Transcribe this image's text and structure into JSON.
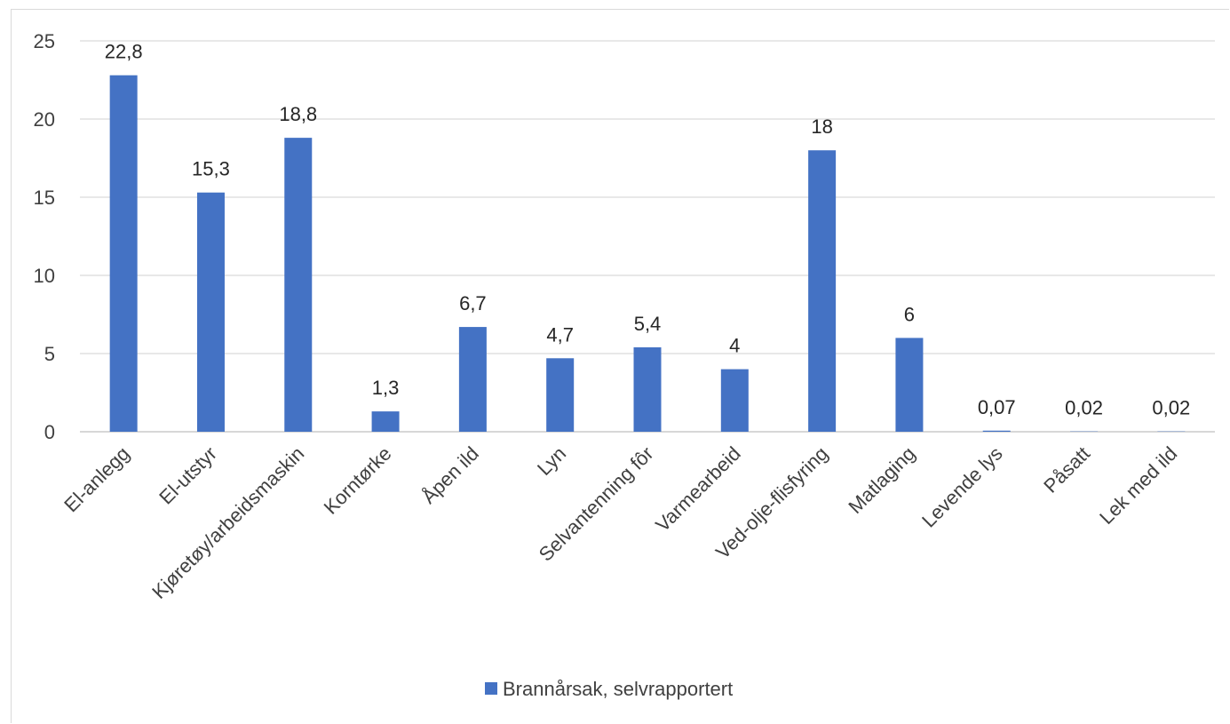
{
  "chart_data": {
    "type": "bar",
    "categories": [
      "El-anlegg",
      "El-utstyr",
      "Kjøretøy/arbeidsmaskin",
      "Korntørke",
      "Åpen ild",
      "Lyn",
      "Selvantenning fôr",
      "Varmearbeid",
      "Ved-olje-flisfyring",
      "Matlaging",
      "Levende lys",
      "Påsatt",
      "Lek med ild"
    ],
    "series": [
      {
        "name": "Brannårsak, selvrapportert",
        "values": [
          22.8,
          15.3,
          18.8,
          1.3,
          6.7,
          4.7,
          5.4,
          4,
          18,
          6,
          0.07,
          0.02,
          0.02
        ],
        "labels": [
          "22,8",
          "15,3",
          "18,8",
          "1,3",
          "6,7",
          "4,7",
          "5,4",
          "4",
          "18",
          "6",
          "0,07",
          "0,02",
          "0,02"
        ],
        "color": "#4472c4"
      }
    ],
    "ylim": [
      0,
      25
    ],
    "yticks": [
      0,
      5,
      10,
      15,
      20,
      25
    ],
    "ytick_labels": [
      "0",
      "5",
      "10",
      "15",
      "20",
      "25"
    ],
    "grid": true,
    "legend_position": "bottom",
    "title": "",
    "xlabel": "",
    "ylabel": ""
  },
  "colors": {
    "bar": "#4472c4",
    "grid": "#d9d9d9",
    "axis": "#bfbfbf"
  }
}
